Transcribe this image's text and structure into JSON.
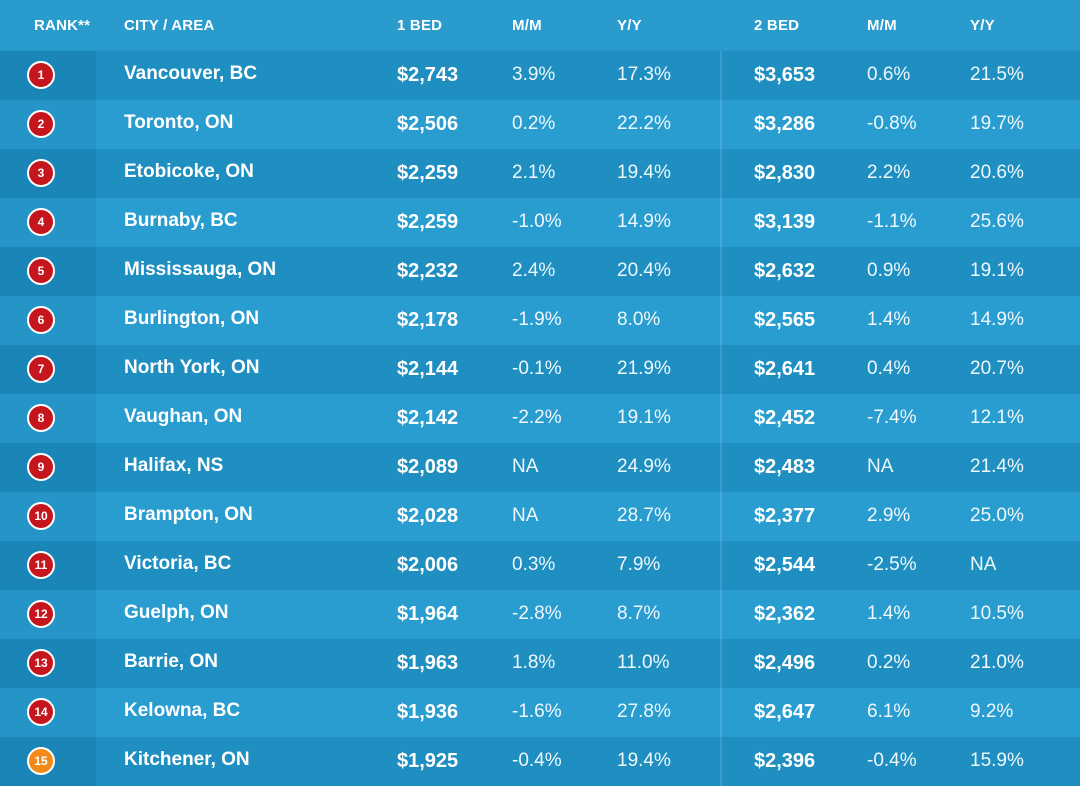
{
  "chart_data": {
    "type": "table",
    "columns": [
      "RANK**",
      "CITY / AREA",
      "1 BED",
      "M/M",
      "Y/Y",
      "2 BED",
      "M/M",
      "Y/Y"
    ],
    "rows": [
      {
        "rank": "1",
        "city": "Vancouver, BC",
        "bed1": "$2,743",
        "bed1_mm": "3.9%",
        "bed1_yy": "17.3%",
        "bed2": "$3,653",
        "bed2_mm": "0.6%",
        "bed2_yy": "21.5%"
      },
      {
        "rank": "2",
        "city": "Toronto, ON",
        "bed1": "$2,506",
        "bed1_mm": "0.2%",
        "bed1_yy": "22.2%",
        "bed2": "$3,286",
        "bed2_mm": "-0.8%",
        "bed2_yy": "19.7%"
      },
      {
        "rank": "3",
        "city": "Etobicoke, ON",
        "bed1": "$2,259",
        "bed1_mm": "2.1%",
        "bed1_yy": "19.4%",
        "bed2": "$2,830",
        "bed2_mm": "2.2%",
        "bed2_yy": "20.6%"
      },
      {
        "rank": "4",
        "city": "Burnaby, BC",
        "bed1": "$2,259",
        "bed1_mm": "-1.0%",
        "bed1_yy": "14.9%",
        "bed2": "$3,139",
        "bed2_mm": "-1.1%",
        "bed2_yy": "25.6%"
      },
      {
        "rank": "5",
        "city": "Mississauga, ON",
        "bed1": "$2,232",
        "bed1_mm": "2.4%",
        "bed1_yy": "20.4%",
        "bed2": "$2,632",
        "bed2_mm": "0.9%",
        "bed2_yy": "19.1%"
      },
      {
        "rank": "6",
        "city": "Burlington, ON",
        "bed1": "$2,178",
        "bed1_mm": "-1.9%",
        "bed1_yy": "8.0%",
        "bed2": "$2,565",
        "bed2_mm": "1.4%",
        "bed2_yy": "14.9%"
      },
      {
        "rank": "7",
        "city": "North York, ON",
        "bed1": "$2,144",
        "bed1_mm": "-0.1%",
        "bed1_yy": "21.9%",
        "bed2": "$2,641",
        "bed2_mm": "0.4%",
        "bed2_yy": "20.7%"
      },
      {
        "rank": "8",
        "city": "Vaughan, ON",
        "bed1": "$2,142",
        "bed1_mm": "-2.2%",
        "bed1_yy": "19.1%",
        "bed2": "$2,452",
        "bed2_mm": "-7.4%",
        "bed2_yy": "12.1%"
      },
      {
        "rank": "9",
        "city": "Halifax, NS",
        "bed1": "$2,089",
        "bed1_mm": "NA",
        "bed1_yy": "24.9%",
        "bed2": "$2,483",
        "bed2_mm": "NA",
        "bed2_yy": "21.4%"
      },
      {
        "rank": "10",
        "city": "Brampton, ON",
        "bed1": "$2,028",
        "bed1_mm": "NA",
        "bed1_yy": "28.7%",
        "bed2": "$2,377",
        "bed2_mm": "2.9%",
        "bed2_yy": "25.0%"
      },
      {
        "rank": "11",
        "city": "Victoria, BC",
        "bed1": "$2,006",
        "bed1_mm": "0.3%",
        "bed1_yy": "7.9%",
        "bed2": "$2,544",
        "bed2_mm": "-2.5%",
        "bed2_yy": "NA"
      },
      {
        "rank": "12",
        "city": "Guelph, ON",
        "bed1": "$1,964",
        "bed1_mm": "-2.8%",
        "bed1_yy": "8.7%",
        "bed2": "$2,362",
        "bed2_mm": "1.4%",
        "bed2_yy": "10.5%"
      },
      {
        "rank": "13",
        "city": "Barrie, ON",
        "bed1": "$1,963",
        "bed1_mm": "1.8%",
        "bed1_yy": "11.0%",
        "bed2": "$2,496",
        "bed2_mm": "0.2%",
        "bed2_yy": "21.0%"
      },
      {
        "rank": "14",
        "city": "Kelowna, BC",
        "bed1": "$1,936",
        "bed1_mm": "-1.6%",
        "bed1_yy": "27.8%",
        "bed2": "$2,647",
        "bed2_mm": "6.1%",
        "bed2_yy": "9.2%"
      },
      {
        "rank": "15",
        "city": "Kitchener, ON",
        "bed1": "$1,925",
        "bed1_mm": "-0.4%",
        "bed1_yy": "19.4%",
        "bed2": "$2,396",
        "bed2_mm": "-0.4%",
        "bed2_yy": "15.9%"
      }
    ],
    "colors": {
      "background": "#2494c6",
      "badge_red": "#c4161c",
      "badge_orange": "#f28a1b",
      "text": "#ffffff"
    }
  }
}
